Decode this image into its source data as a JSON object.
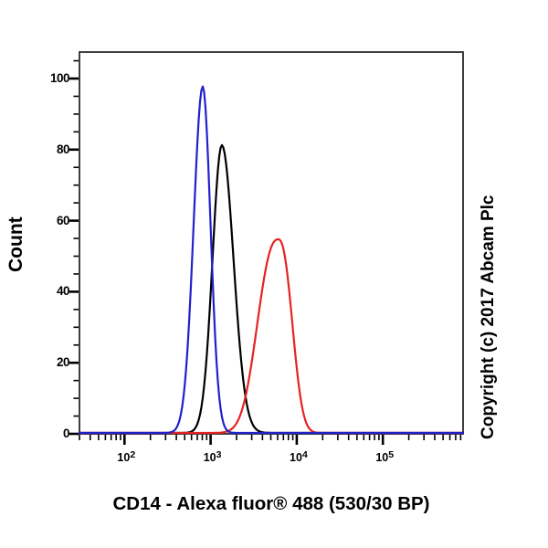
{
  "chart_data": {
    "type": "line",
    "subtype": "flow-cytometry-histogram-overlay",
    "title": "",
    "xlabel": "CD14 - Alexa fluor® 488 (530/30 BP)",
    "ylabel": "Count",
    "copyright": "Copyright (c) 2017 Abcam Plc",
    "x_scale": "log",
    "x_range": [
      30,
      850000
    ],
    "x_major_ticks": [
      100,
      1000,
      10000,
      100000
    ],
    "x_tick_exponents": [
      2,
      3,
      4,
      5
    ],
    "x_tick_base": "10",
    "y_range": [
      0,
      107.5
    ],
    "y_major_ticks": [
      0,
      20,
      40,
      60,
      80,
      100
    ],
    "y_tick_labels": [
      "0",
      "20",
      "40",
      "60",
      "80",
      "100"
    ],
    "y_minor_step": 5,
    "grid": false,
    "legend": false,
    "frame_color": "#3f3f3f",
    "tick_color": "#000000",
    "series": [
      {
        "name": "black-curve",
        "color": "#000000",
        "peak_x": 1350,
        "peak_y": 81,
        "sigma_left_decades": 0.108,
        "sigma_right_decades": 0.135,
        "shape_power": 2.0
      },
      {
        "name": "red-curve",
        "color": "#e62222",
        "peak_x": 6100,
        "peak_y": 54.5,
        "sigma_left_decades": 0.23,
        "sigma_right_decades": 0.155,
        "shape_power": 2.4
      },
      {
        "name": "blue-curve",
        "color": "#2121cc",
        "peak_x": 810,
        "peak_y": 97.5,
        "sigma_left_decades": 0.105,
        "sigma_right_decades": 0.09,
        "shape_power": 2.0
      }
    ]
  }
}
